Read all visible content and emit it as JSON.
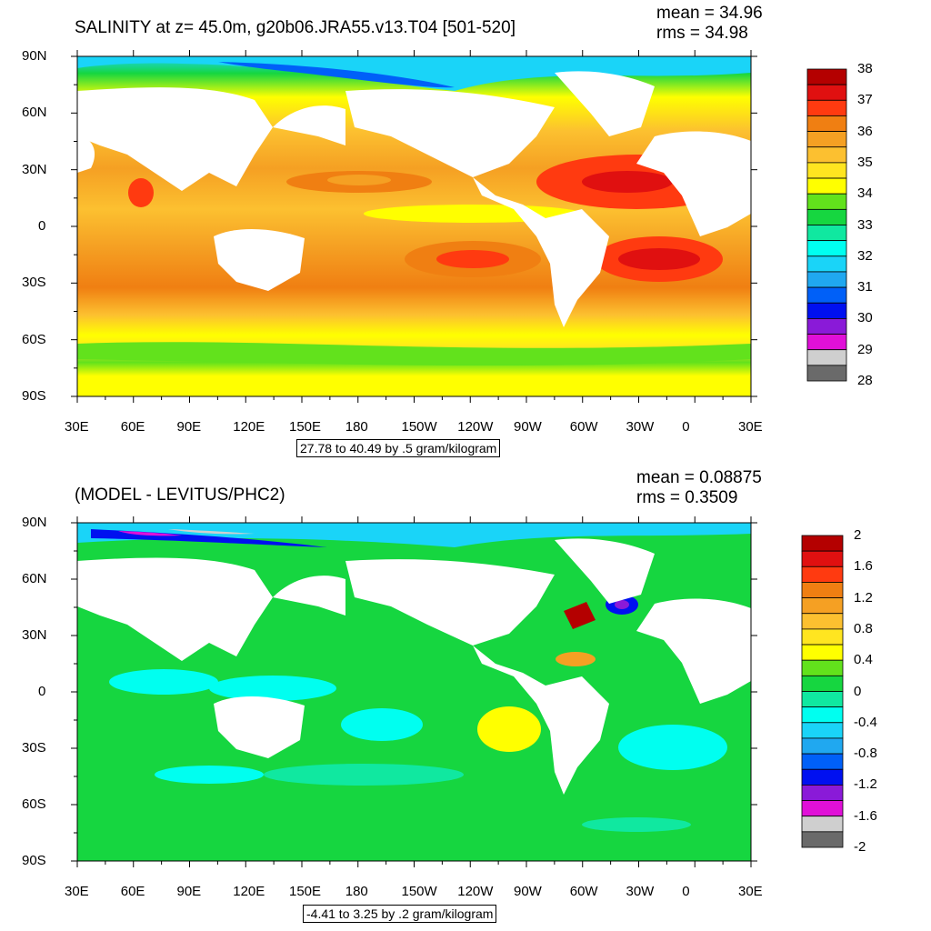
{
  "chart_data": [
    {
      "type": "heatmap",
      "title": "SALINITY at z=  45.0m, g20b06.JRA55.v13.T04 [501-520]",
      "stats": {
        "mean": "mean = 34.96",
        "rms": "rms = 34.98"
      },
      "range_note": "27.78 to 40.49 by .5 gram/kilogram",
      "x_ticks": [
        "30E",
        "60E",
        "90E",
        "120E",
        "150E",
        "180",
        "150W",
        "120W",
        "90W",
        "60W",
        "30W",
        "0",
        "30E"
      ],
      "y_ticks": [
        "90N",
        "60N",
        "30N",
        "0",
        "30S",
        "60S",
        "90S"
      ],
      "colorbar": {
        "labels": [
          "38",
          "37",
          "36",
          "35",
          "34",
          "33",
          "32",
          "31",
          "30",
          "29",
          "28"
        ],
        "colors": [
          "#b40000",
          "#e01010",
          "#ff3a10",
          "#f07f12",
          "#f5a023",
          "#fcc030",
          "#ffe520",
          "#ffff00",
          "#62e21c",
          "#16d640",
          "#10e8a0",
          "#00fff0",
          "#1ad4f8",
          "#20a8f0",
          "#0060f8",
          "#0010f0",
          "#8a1ad8",
          "#e010d8",
          "#cfcfcf",
          "#6a6a6a"
        ]
      }
    },
    {
      "type": "heatmap",
      "title": "(MODEL - LEVITUS/PHC2)",
      "stats": {
        "mean": "mean = 0.08875",
        "rms": "rms = 0.3509"
      },
      "range_note": "-4.41 to 3.25 by .2 gram/kilogram",
      "x_ticks": [
        "30E",
        "60E",
        "90E",
        "120E",
        "150E",
        "180",
        "150W",
        "120W",
        "90W",
        "60W",
        "30W",
        "0",
        "30E"
      ],
      "y_ticks": [
        "90N",
        "60N",
        "30N",
        "0",
        "30S",
        "60S",
        "90S"
      ],
      "colorbar": {
        "labels": [
          "2",
          "1.6",
          "1.2",
          "0.8",
          "0.4",
          "0",
          "-0.4",
          "-0.8",
          "-1.2",
          "-1.6",
          "-2"
        ],
        "colors": [
          "#b40000",
          "#e01010",
          "#ff3a10",
          "#f07f12",
          "#f5a023",
          "#fcc030",
          "#ffe520",
          "#ffff00",
          "#62e21c",
          "#16d640",
          "#10e8a0",
          "#00fff0",
          "#1ad4f8",
          "#20a8f0",
          "#0060f8",
          "#0010f0",
          "#8a1ad8",
          "#e010d8",
          "#cfcfcf",
          "#6a6a6a"
        ]
      }
    }
  ]
}
